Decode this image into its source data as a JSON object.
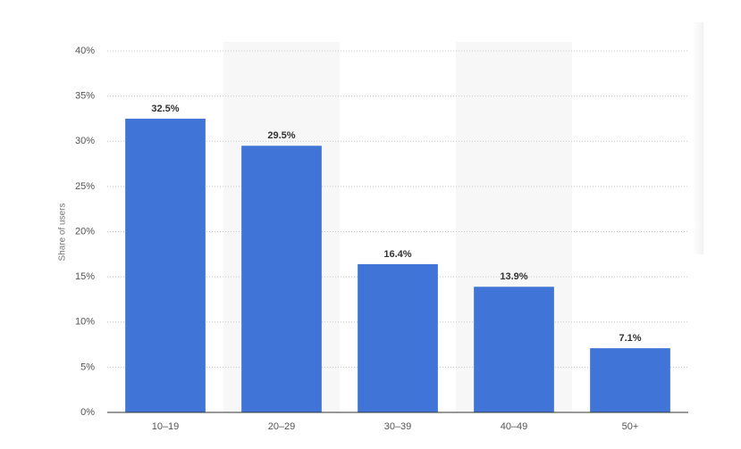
{
  "chart_data": {
    "type": "bar",
    "y_label": "Share of users",
    "categories": [
      "10–19",
      "20–29",
      "30–39",
      "40–49",
      "50+"
    ],
    "values": [
      32.5,
      29.5,
      16.4,
      13.9,
      7.1
    ],
    "value_labels": [
      "32.5%",
      "29.5%",
      "16.4%",
      "13.9%",
      "7.1%"
    ],
    "color": "#4074d6",
    "ylim": [
      0,
      40
    ],
    "yticks": [
      {
        "value": 0,
        "label": "0%"
      },
      {
        "value": 5,
        "label": "5%"
      },
      {
        "value": 10,
        "label": "10%"
      },
      {
        "value": 15,
        "label": "15%"
      },
      {
        "value": 20,
        "label": "20%"
      },
      {
        "value": 25,
        "label": "25%"
      },
      {
        "value": 30,
        "label": "30%"
      },
      {
        "value": 35,
        "label": "35%"
      },
      {
        "value": 40,
        "label": "40%"
      }
    ],
    "grid": true
  }
}
